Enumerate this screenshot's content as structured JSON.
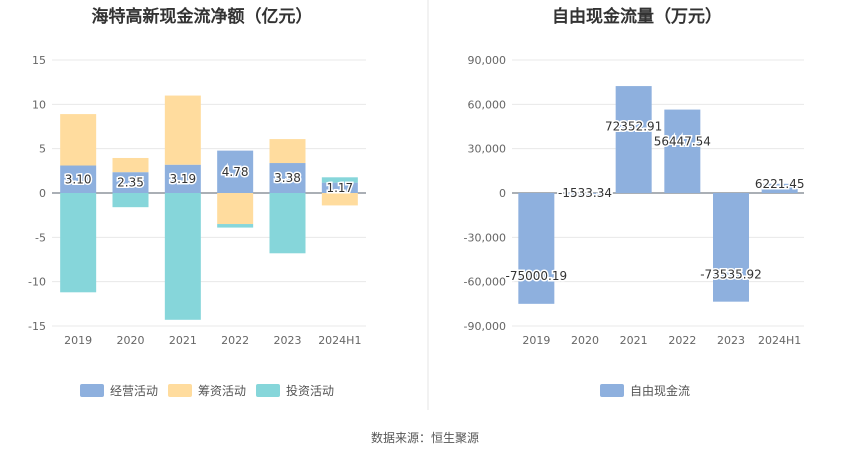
{
  "chart_data": [
    {
      "type": "bar",
      "stacked": true,
      "title": "海特高新现金流净额（亿元）",
      "categories": [
        "2019",
        "2020",
        "2021",
        "2022",
        "2023",
        "2024H1"
      ],
      "ylim": [
        -15,
        15
      ],
      "yticks": [
        "15",
        "10",
        "5",
        "0",
        "-5",
        "-10",
        "-15"
      ],
      "grid": true,
      "legend_position": "bottom",
      "series": [
        {
          "name": "经营活动",
          "color": "#8eb0de",
          "values": [
            3.1,
            2.35,
            3.19,
            4.78,
            3.38,
            1.17
          ],
          "labels": [
            "3.10",
            "2.35",
            "3.19",
            "4.78",
            "3.38",
            "1.17"
          ]
        },
        {
          "name": "筹资活动",
          "color": "#ffdc9e",
          "values": [
            5.8,
            1.6,
            7.8,
            -3.5,
            2.7,
            -1.4
          ]
        },
        {
          "name": "投资活动",
          "color": "#86d6da",
          "values": [
            -11.2,
            -1.6,
            -14.3,
            -0.4,
            -6.8,
            0.6
          ]
        }
      ]
    },
    {
      "type": "bar",
      "title": "自由现金流量（万元）",
      "categories": [
        "2019",
        "2020",
        "2021",
        "2022",
        "2023",
        "2024H1"
      ],
      "ylim": [
        -90000,
        90000
      ],
      "yticks": [
        "90,000",
        "60,000",
        "30,000",
        "0",
        "-30,000",
        "-60,000",
        "-90,000"
      ],
      "grid": true,
      "legend_position": "bottom",
      "series": [
        {
          "name": "自由现金流",
          "color": "#8eb0de",
          "values": [
            -75000.19,
            -1533.34,
            72352.91,
            56447.54,
            -73535.92,
            6221.45
          ],
          "labels": [
            "-75000.19",
            "-1533.34",
            "72352.91",
            "56447.54",
            "-73535.92",
            "6221.45"
          ]
        }
      ]
    }
  ],
  "source": "数据来源：恒生聚源"
}
